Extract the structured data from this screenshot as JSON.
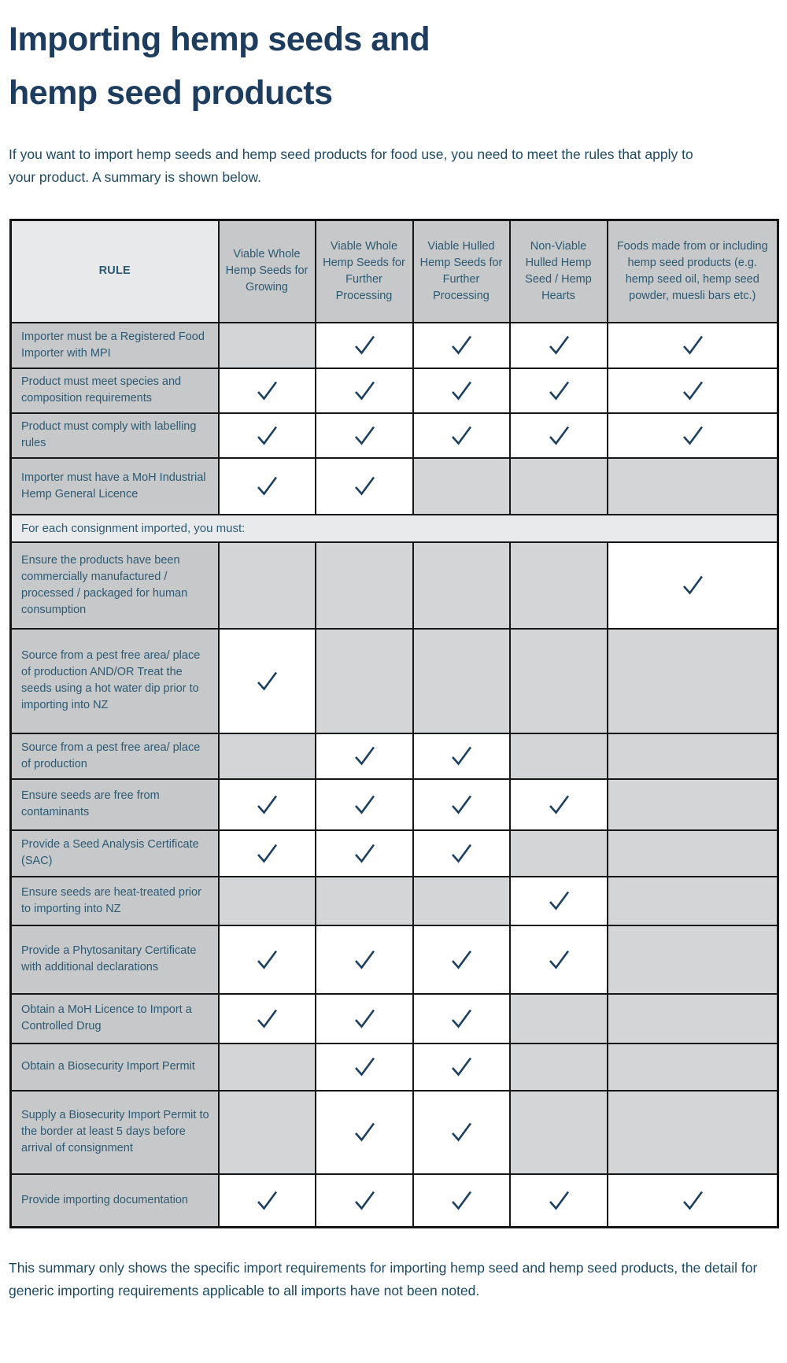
{
  "page": {
    "title_lines": [
      "Importing hemp seeds and",
      "hemp seed products"
    ],
    "intro": "If you want to import hemp seeds and hemp seed products for food use, you need to meet the rules that apply to your product. A summary is shown below.",
    "footer": "This summary only shows the specific import requirements for importing hemp seed and hemp seed products, the detail for generic importing requirements applicable to all imports have not been noted."
  },
  "table": {
    "columns": [
      "RULE",
      "Viable Whole Hemp Seeds for Growing",
      "Viable Whole Hemp Seeds for Further Processing",
      "Viable Hulled Hemp Seeds for Further Processing",
      "Non-Viable Hulled Hemp Seed / Hemp Hearts",
      "Foods made from or including hemp seed products (e.g. hemp seed oil, hemp seed powder, muesli bars etc.)"
    ],
    "section_row": {
      "label": "For each consignment imported, you must:",
      "position_after": 4
    },
    "rows": [
      {
        "label": "Importer must be a Registered Food Importer with MPI",
        "checks": [
          false,
          true,
          true,
          true,
          true
        ]
      },
      {
        "label": "Product must meet species and composition requirements",
        "checks": [
          true,
          true,
          true,
          true,
          true
        ]
      },
      {
        "label": "Product must comply with labelling rules",
        "checks": [
          true,
          true,
          true,
          true,
          true
        ]
      },
      {
        "label": "Importer must have a MoH Industrial Hemp General Licence",
        "checks": [
          true,
          true,
          false,
          false,
          false
        ]
      },
      {
        "label": "Ensure the products have been commercially manufactured / processed / packaged for human consumption",
        "checks": [
          false,
          false,
          false,
          false,
          true
        ]
      },
      {
        "label": "Source from a pest free area/ place of production AND/OR Treat the seeds using a hot water dip prior to importing into NZ",
        "checks": [
          true,
          false,
          false,
          false,
          false
        ]
      },
      {
        "label": "Source from a pest free area/ place of production",
        "checks": [
          false,
          true,
          true,
          false,
          false
        ]
      },
      {
        "label": "Ensure seeds are free from contaminants",
        "checks": [
          true,
          true,
          true,
          true,
          false
        ]
      },
      {
        "label": "Provide a Seed Analysis Certificate (SAC)",
        "checks": [
          true,
          true,
          true,
          false,
          false
        ]
      },
      {
        "label": "Ensure seeds are heat-treated prior to importing into NZ",
        "checks": [
          false,
          false,
          false,
          true,
          false
        ]
      },
      {
        "label": "Provide a Phytosanitary Certificate with additional declarations",
        "checks": [
          true,
          true,
          true,
          true,
          false
        ]
      },
      {
        "label": "Obtain a MoH Licence to Import a Controlled Drug",
        "checks": [
          true,
          true,
          true,
          false,
          false
        ]
      },
      {
        "label": "Obtain a Biosecurity Import Permit",
        "checks": [
          false,
          true,
          true,
          false,
          false
        ]
      },
      {
        "label": "Supply a Biosecurity Import Permit to the border at least 5 days before arrival of consignment",
        "checks": [
          false,
          true,
          true,
          false,
          false
        ]
      },
      {
        "label": "Provide importing documentation",
        "checks": [
          true,
          true,
          true,
          true,
          true
        ]
      }
    ],
    "check_mark": "✓"
  },
  "colors": {
    "title": "#1d3c5e",
    "body_text": "#1d4a62",
    "table_text": "#2d5a73",
    "check": "#1e4060",
    "header_bg": "#c7c8c9",
    "label_bg": "#c7c8c9",
    "empty_bg": "#d4d5d6",
    "band_bg": "#e9eaeb",
    "rule_head_bg": "#e8e9ea",
    "border": "#161616"
  }
}
